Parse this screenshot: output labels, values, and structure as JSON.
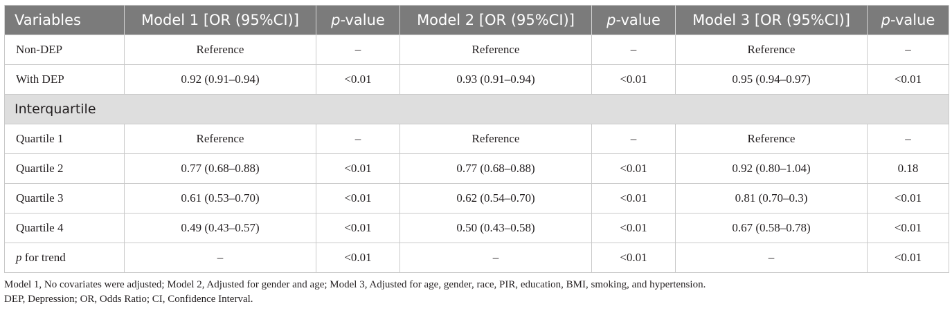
{
  "table": {
    "header": {
      "variables": "Variables",
      "model1": "Model 1 [OR (95%CI)]",
      "p_prefix": "p",
      "p_suffix": "-value",
      "model2": "Model 2 [OR (95%CI)]",
      "model3": "Model 3 [OR (95%CI)]"
    },
    "rows": [
      {
        "label": "Non-DEP",
        "m1": "Reference",
        "p1": "–",
        "m2": "Reference",
        "p2": "–",
        "m3": "Reference",
        "p3": "–"
      },
      {
        "label": "With DEP",
        "m1": "0.92 (0.91–0.94)",
        "p1": "<0.01",
        "m2": "0.93 (0.91–0.94)",
        "p2": "<0.01",
        "m3": "0.95 (0.94–0.97)",
        "p3": "<0.01"
      }
    ],
    "section_label": "Interquartile",
    "quartile_rows": [
      {
        "label": "Quartile 1",
        "m1": "Reference",
        "p1": "–",
        "m2": "Reference",
        "p2": "–",
        "m3": "Reference",
        "p3": "–"
      },
      {
        "label": "Quartile 2",
        "m1": "0.77 (0.68–0.88)",
        "p1": "<0.01",
        "m2": "0.77 (0.68–0.88)",
        "p2": "<0.01",
        "m3": "0.92 (0.80–1.04)",
        "p3": "0.18"
      },
      {
        "label": "Quartile 3",
        "m1": "0.61 (0.53–0.70)",
        "p1": "<0.01",
        "m2": "0.62 (0.54–0.70)",
        "p2": "<0.01",
        "m3": "0.81 (0.70–0.3)",
        "p3": "<0.01"
      },
      {
        "label": "Quartile 4",
        "m1": "0.49 (0.43–0.57)",
        "p1": "<0.01",
        "m2": "0.50 (0.43–0.58)",
        "p2": "<0.01",
        "m3": "0.67 (0.58–0.78)",
        "p3": "<0.01"
      }
    ],
    "trend_row": {
      "label_prefix": "p",
      "label_suffix": " for trend",
      "m1": "–",
      "p1": "<0.01",
      "m2": "–",
      "p2": "<0.01",
      "m3": "–",
      "p3": "<0.01"
    }
  },
  "notes": [
    "Model 1, No covariates were adjusted; Model 2, Adjusted for gender and age; Model 3, Adjusted for age, gender, race, PIR, education, BMI, smoking, and hypertension.",
    "DEP, Depression; OR, Odds Ratio; CI, Confidence Interval."
  ],
  "colors": {
    "header_bg": "#7b7b7b",
    "section_bg": "#dedede",
    "border": "#c9c9c9",
    "text": "#231f20"
  }
}
